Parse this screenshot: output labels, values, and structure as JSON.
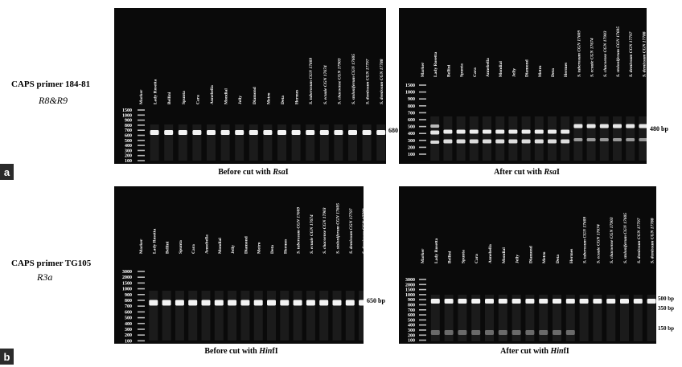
{
  "panel_a": {
    "tag": "a",
    "primer": "CAPS primer 184-81",
    "locus": "R8&R9",
    "left": {
      "lanes": [
        "Marker",
        "Lady Rosetta",
        "Bellini",
        "Spunta",
        "Cara",
        "Annebella",
        "Mondial",
        "Jelly",
        "Diamond",
        "Metro",
        "Deta",
        "Hermes",
        "S. tuberosum CGN 17609",
        "S. ecuaie CGN 17674",
        "S. chacoense CGN 17903",
        "S. stoloniferum CGN 17605",
        "S. demissum CGN 17797",
        "S. demissum CGN 17788"
      ],
      "ladder": [
        "1500",
        "1000",
        "900",
        "800",
        "700",
        "600",
        "500",
        "400",
        "300",
        "200",
        "100"
      ],
      "band_label": "680 bp",
      "caption_pre": "Before cut with ",
      "caption_enzyme": "Rsa",
      "caption_post": "I"
    },
    "right": {
      "lanes": [
        "Marker",
        "Lady Rosetta",
        "Bellini",
        "Spunta",
        "Cara",
        "Annebella",
        "Mondial",
        "Jelly",
        "Diamond",
        "Metro",
        "Deta",
        "Hermes",
        "S. tuberosum CGN 17609",
        "S. ecuaie CGN 17674",
        "S. chacoense CGN 17903",
        "S. stoloniferum CGN 17605",
        "S. demissum CGN 17797",
        "S. demissum CGN 17788"
      ],
      "ladder": [
        "1500",
        "1000",
        "900",
        "800",
        "700",
        "600",
        "500",
        "400",
        "300",
        "200",
        "100"
      ],
      "band_label": "480 bp",
      "caption_pre": "After cut with ",
      "caption_enzyme": "Rsa",
      "caption_post": "I"
    }
  },
  "panel_b": {
    "tag": "b",
    "primer": "CAPS primer TG105",
    "locus": "R3a",
    "left": {
      "lanes": [
        "Marker",
        "Lady Rosetta",
        "Bellini",
        "Spunta",
        "Cara",
        "Annebella",
        "Mondial",
        "Jelly",
        "Diamond",
        "Metro",
        "Deta",
        "Hermes",
        "S. tuberosum CGN 17609",
        "S. ecuaie CGN 17674",
        "S. chacoense CGN 17903",
        "S. stoloniferum CGN 17605",
        "S. demissum CGN 17797",
        "S. demissum CGN 17788"
      ],
      "ladder": [
        "3000",
        "2000",
        "1500",
        "1000",
        "900",
        "800",
        "700",
        "600",
        "500",
        "400",
        "300",
        "200",
        "100"
      ],
      "band_label": "650 bp",
      "caption_pre": "Before cut with ",
      "caption_enzyme": "Hin",
      "caption_post": "fI"
    },
    "right": {
      "lanes": [
        "Marker",
        "Lady Rosetta",
        "Bellini",
        "Spunta",
        "Cara",
        "Annebella",
        "Mondial",
        "Jelly",
        "Diamond",
        "Metro",
        "Deta",
        "Hermes",
        "S. tuberosum CGN 17609",
        "S. ecuaie CGN 17674",
        "S. chacoense CGN 17903",
        "S. stoloniferum CGN 17605",
        "S. demissum CGN 17797",
        "S. demissum CGN 17788"
      ],
      "ladder": [
        "3000",
        "2000",
        "1500",
        "1000",
        "900",
        "800",
        "700",
        "600",
        "500",
        "400",
        "300",
        "200",
        "100"
      ],
      "band_labels": [
        "500 bp",
        "350 bp",
        "150 bp"
      ],
      "caption_pre": "After cut with ",
      "caption_enzyme": "Hin",
      "caption_post": "fI"
    }
  }
}
